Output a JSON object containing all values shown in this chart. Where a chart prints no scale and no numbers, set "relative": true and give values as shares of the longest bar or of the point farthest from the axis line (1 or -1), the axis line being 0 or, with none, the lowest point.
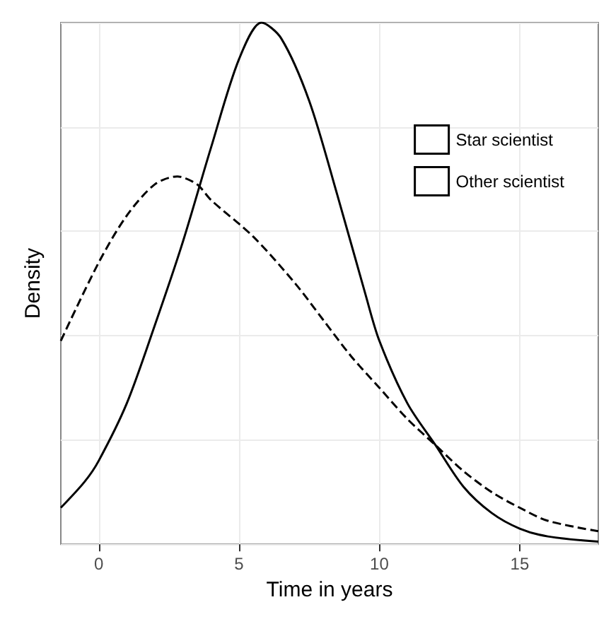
{
  "chart_data": {
    "type": "line",
    "xlabel": "Time in years",
    "ylabel": "Density",
    "relative": true,
    "xlim": [
      -1.35,
      17.8
    ],
    "xticks": [
      0,
      5,
      10,
      15
    ],
    "tick_labels": "x",
    "grid": true,
    "legend": "top right",
    "marker": "none",
    "series": [
      {
        "name": "Star scientist",
        "color": "#000000",
        "line_style": "solid",
        "x": [
          -1.35,
          -0.5,
          0,
          1,
          2,
          3,
          4,
          5,
          5.8,
          6.5,
          7.5,
          8.5,
          9.5,
          10,
          11,
          12,
          13,
          14,
          15,
          16,
          17.8
        ],
        "values": [
          0.07,
          0.12,
          0.16,
          0.27,
          0.42,
          0.58,
          0.76,
          0.93,
          1.0,
          0.97,
          0.85,
          0.67,
          0.48,
          0.39,
          0.27,
          0.19,
          0.11,
          0.06,
          0.03,
          0.015,
          0.005
        ]
      },
      {
        "name": "Other scientist",
        "color": "#000000",
        "line_style": "dashed",
        "x": [
          -1.35,
          0,
          1,
          2,
          2.8,
          3.5,
          4,
          5.5,
          7,
          8,
          9,
          10,
          11,
          12,
          13,
          14,
          15,
          16,
          17.8
        ],
        "values": [
          0.39,
          0.54,
          0.63,
          0.69,
          0.705,
          0.69,
          0.66,
          0.59,
          0.5,
          0.43,
          0.36,
          0.3,
          0.24,
          0.19,
          0.14,
          0.1,
          0.07,
          0.045,
          0.025
        ]
      }
    ]
  }
}
